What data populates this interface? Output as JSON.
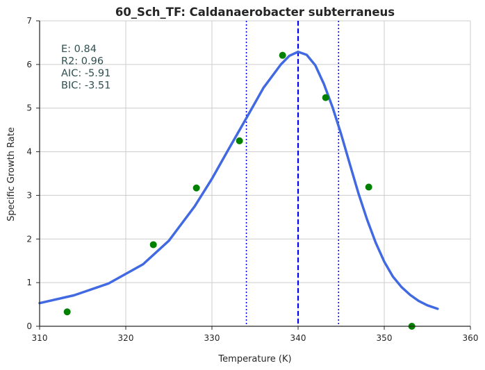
{
  "chart_data": {
    "type": "scatter",
    "title": "60_Sch_TF: Caldanaerobacter subterraneus",
    "xlabel": "Temperature (K)",
    "ylabel": "Specific Growth Rate",
    "xlim": [
      310,
      360
    ],
    "ylim": [
      0,
      7
    ],
    "x_ticks": [
      "310",
      "320",
      "330",
      "340",
      "350",
      "360"
    ],
    "y_ticks": [
      "0",
      "1",
      "2",
      "3",
      "4",
      "5",
      "6",
      "7"
    ],
    "grid": true,
    "colors": {
      "points": "#008000",
      "fit": "#4169E1",
      "vlines": "#0000FF",
      "stats_text": "#2F4F4F"
    },
    "series": [
      {
        "points": [
          {
            "x": 313.2,
            "y": 0.33
          },
          {
            "x": 323.2,
            "y": 1.87
          },
          {
            "x": 328.2,
            "y": 3.17
          },
          {
            "x": 333.2,
            "y": 4.25
          },
          {
            "x": 338.2,
            "y": 6.21
          },
          {
            "x": 343.2,
            "y": 5.24
          },
          {
            "x": 348.2,
            "y": 3.19
          },
          {
            "x": 353.2,
            "y": 0.0
          }
        ]
      },
      {
        "curve": [
          {
            "x": 310.0,
            "y": 0.53
          },
          {
            "x": 314.0,
            "y": 0.71
          },
          {
            "x": 318.0,
            "y": 0.98
          },
          {
            "x": 322.0,
            "y": 1.42
          },
          {
            "x": 325.0,
            "y": 1.96
          },
          {
            "x": 328.0,
            "y": 2.75
          },
          {
            "x": 330.0,
            "y": 3.38
          },
          {
            "x": 332.0,
            "y": 4.08
          },
          {
            "x": 334.0,
            "y": 4.77
          },
          {
            "x": 336.0,
            "y": 5.47
          },
          {
            "x": 338.0,
            "y": 6.0
          },
          {
            "x": 339.0,
            "y": 6.2
          },
          {
            "x": 340.0,
            "y": 6.29
          },
          {
            "x": 341.0,
            "y": 6.22
          },
          {
            "x": 342.0,
            "y": 5.98
          },
          {
            "x": 343.0,
            "y": 5.55
          },
          {
            "x": 344.0,
            "y": 5.02
          },
          {
            "x": 345.0,
            "y": 4.4
          },
          {
            "x": 346.0,
            "y": 3.72
          },
          {
            "x": 347.0,
            "y": 3.05
          },
          {
            "x": 348.0,
            "y": 2.45
          },
          {
            "x": 349.0,
            "y": 1.92
          },
          {
            "x": 350.0,
            "y": 1.48
          },
          {
            "x": 351.0,
            "y": 1.14
          },
          {
            "x": 352.0,
            "y": 0.9
          },
          {
            "x": 353.0,
            "y": 0.72
          },
          {
            "x": 354.0,
            "y": 0.58
          },
          {
            "x": 355.0,
            "y": 0.48
          },
          {
            "x": 356.2,
            "y": 0.4
          }
        ]
      }
    ],
    "vlines": [
      {
        "x": 340.0,
        "style": "dashed"
      },
      {
        "x": 334.0,
        "style": "dotted"
      },
      {
        "x": 344.7,
        "style": "dotted"
      }
    ],
    "annotations": [
      "E:  0.84",
      "R2:  0.96",
      "AIC: -5.91",
      "BIC: -3.51"
    ]
  }
}
